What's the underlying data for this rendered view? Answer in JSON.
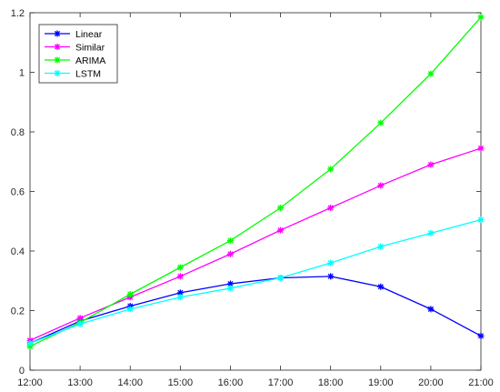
{
  "chart_data": {
    "type": "line",
    "title": "",
    "xlabel": "",
    "ylabel": "",
    "categories": [
      "12:00",
      "13:00",
      "14:00",
      "15:00",
      "16:00",
      "17:00",
      "18:00",
      "19:00",
      "20:00",
      "21:00"
    ],
    "ylim": [
      0,
      1.2
    ],
    "yticks": [
      "0",
      "0.2",
      "0.4",
      "0.6",
      "0.8",
      "1",
      "1.2"
    ],
    "grid": false,
    "legend_position": "top-left",
    "series": [
      {
        "name": "Linear",
        "color": "#0000ff",
        "values": [
          0.09,
          0.165,
          0.215,
          0.26,
          0.29,
          0.31,
          0.315,
          0.28,
          0.205,
          0.115
        ]
      },
      {
        "name": "Similar",
        "color": "#ff00ff",
        "values": [
          0.1,
          0.175,
          0.245,
          0.315,
          0.39,
          0.47,
          0.545,
          0.62,
          0.69,
          0.745
        ]
      },
      {
        "name": "ARIMA",
        "color": "#00ff00",
        "values": [
          0.08,
          0.16,
          0.255,
          0.345,
          0.435,
          0.545,
          0.675,
          0.83,
          0.995,
          1.185
        ]
      },
      {
        "name": "LSTM",
        "color": "#00ffff",
        "values": [
          0.09,
          0.155,
          0.205,
          0.245,
          0.275,
          0.31,
          0.36,
          0.415,
          0.46,
          0.505
        ]
      }
    ]
  }
}
